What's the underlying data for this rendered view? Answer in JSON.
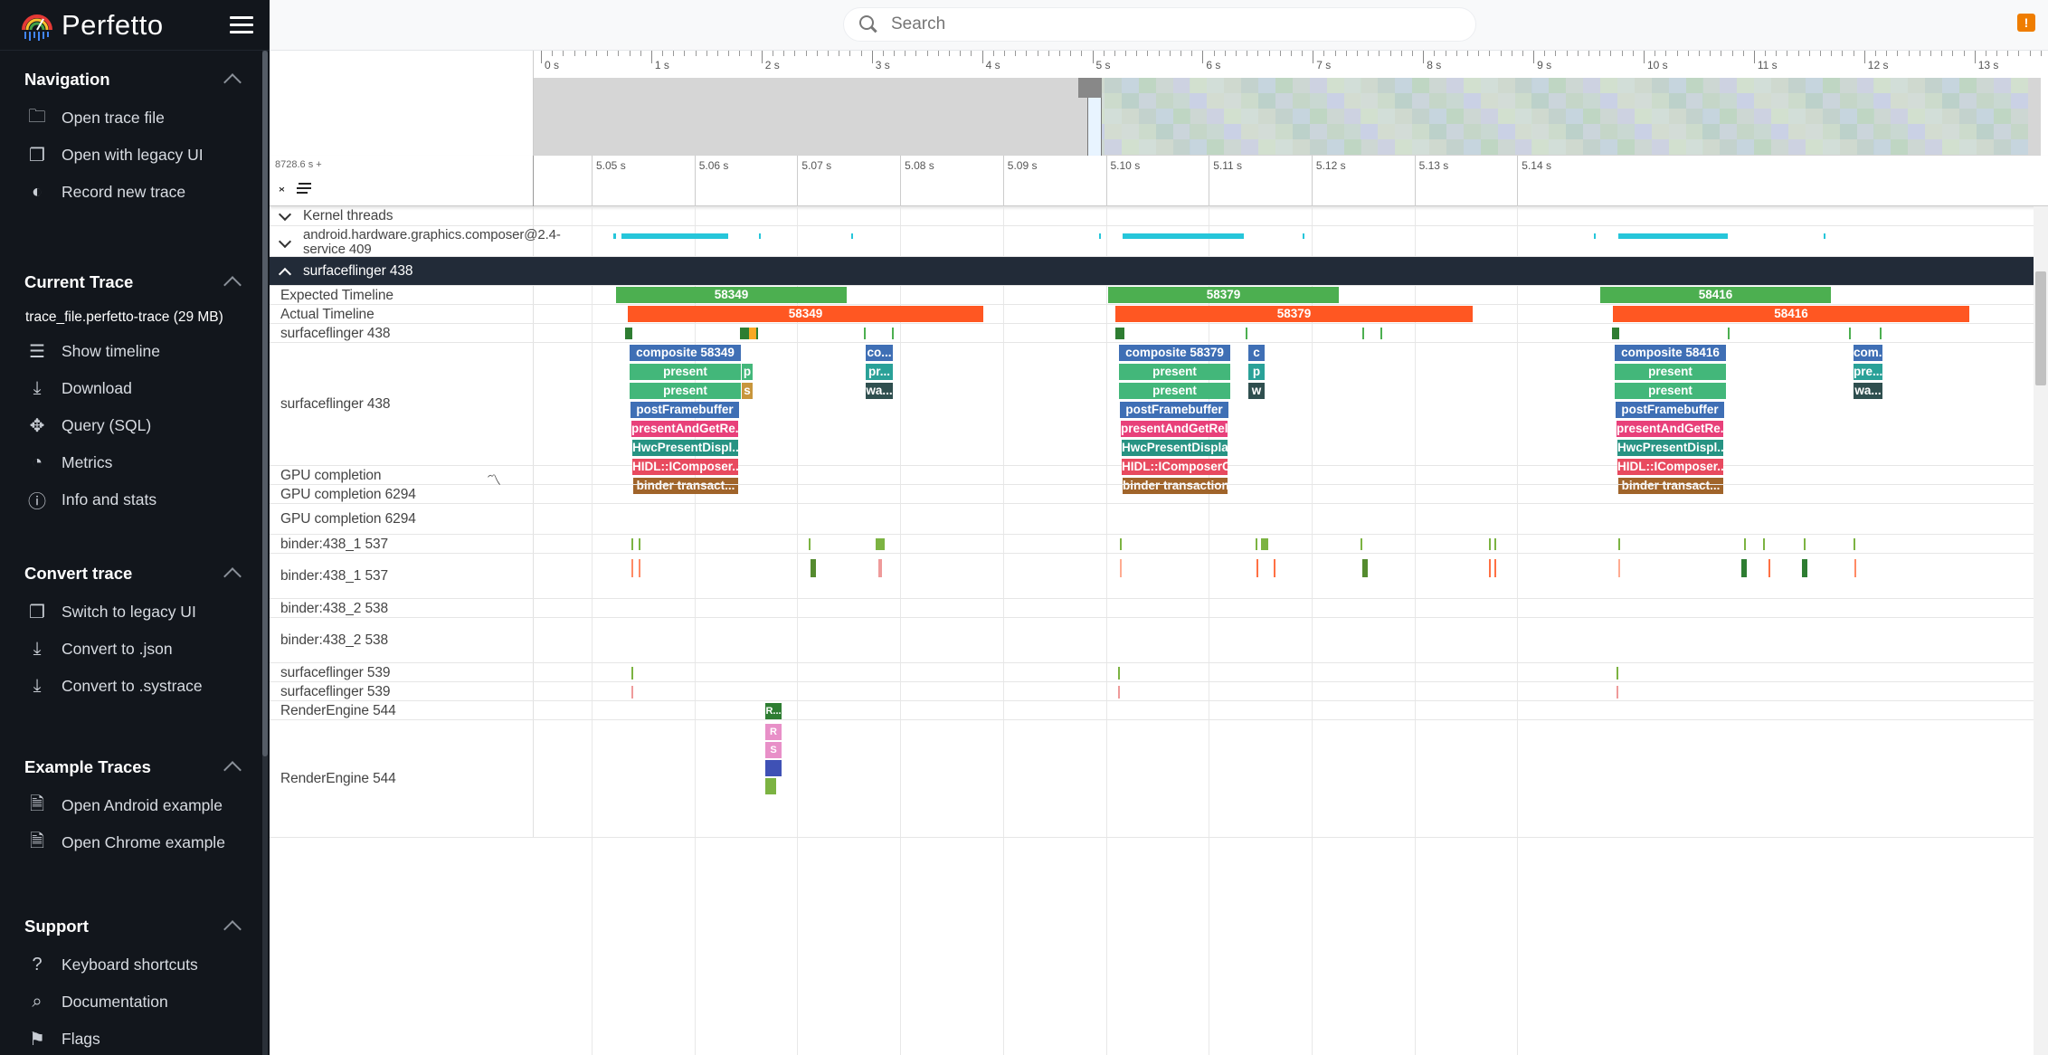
{
  "app": {
    "title": "Perfetto"
  },
  "sidebar": {
    "sections": [
      {
        "title": "Navigation",
        "items": [
          {
            "label": "Open trace file",
            "icon": "folder-icon"
          },
          {
            "label": "Open with legacy UI",
            "icon": "filter-none-icon"
          },
          {
            "label": "Record new trace",
            "icon": "record-toggle-icon"
          }
        ]
      },
      {
        "title": "Current Trace",
        "trace_name": "trace_file.perfetto-trace (29 MB)",
        "items": [
          {
            "label": "Show timeline",
            "icon": "timeline-icon"
          },
          {
            "label": "Download",
            "icon": "download-icon"
          },
          {
            "label": "Query (SQL)",
            "icon": "query-icon"
          },
          {
            "label": "Metrics",
            "icon": "speedometer-icon"
          },
          {
            "label": "Info and stats",
            "icon": "info-icon"
          }
        ]
      },
      {
        "title": "Convert trace",
        "items": [
          {
            "label": "Switch to legacy UI",
            "icon": "filter-none-icon"
          },
          {
            "label": "Convert to .json",
            "icon": "download-icon"
          },
          {
            "label": "Convert to .systrace",
            "icon": "download-icon"
          }
        ]
      },
      {
        "title": "Example Traces",
        "items": [
          {
            "label": "Open Android example",
            "icon": "description-icon"
          },
          {
            "label": "Open Chrome example",
            "icon": "description-icon"
          }
        ]
      },
      {
        "title": "Support",
        "items": [
          {
            "label": "Keyboard shortcuts",
            "icon": "help-icon"
          },
          {
            "label": "Documentation",
            "icon": "find-in-page-icon"
          },
          {
            "label": "Flags",
            "icon": "emoji-flags-icon"
          }
        ]
      }
    ]
  },
  "search": {
    "placeholder": "Search"
  },
  "warning": {
    "label": "!"
  },
  "overview": {
    "ticks": [
      "0 s",
      "1 s",
      "2 s",
      "3 s",
      "4 s",
      "5 s",
      "6 s",
      "7 s",
      "8 s",
      "9 s",
      "10 s",
      "11 s",
      "12 s",
      "13 s"
    ]
  },
  "timeline": {
    "offset_label": "8728.6 s +",
    "ticks": [
      "5.05 s",
      "5.06 s",
      "5.07 s",
      "5.08 s",
      "5.09 s",
      "5.10 s",
      "5.11 s",
      "5.12 s",
      "5.13 s",
      "5.14 s"
    ]
  },
  "tracks": {
    "kernel_threads": "Kernel threads",
    "composer_service": "android.hardware.graphics.composer@2.4-service 409",
    "sf_group": "surfaceflinger 438",
    "expected_timeline": "Expected Timeline",
    "actual_timeline": "Actual Timeline",
    "sf_438_a": "surfaceflinger 438",
    "sf_438_b": "surfaceflinger 438",
    "gpu_completion": "GPU completion",
    "gpu_completion_6294_a": "GPU completion 6294",
    "gpu_completion_6294_b": "GPU completion 6294",
    "binder_1_a": "binder:438_1 537",
    "binder_1_b": "binder:438_1 537",
    "binder_2_a": "binder:438_2 538",
    "binder_2_b": "binder:438_2 538",
    "sf_539_a": "surfaceflinger 539",
    "sf_539_b": "surfaceflinger 539",
    "re_544_a": "RenderEngine 544",
    "re_544_b": "RenderEngine 544"
  },
  "frames": {
    "expected": [
      "58349",
      "58379",
      "58416"
    ],
    "actual": [
      "58349",
      "58379",
      "58416"
    ]
  },
  "slices": {
    "f1": [
      "composite 58349",
      "present",
      "present",
      "postFramebuffer",
      "presentAndGetRe...",
      "HwcPresentDispl...",
      "HIDL::IComposer...",
      "binder transact..."
    ],
    "f2": [
      "composite 58379",
      "present",
      "present",
      "postFramebuffer",
      "presentAndGetRele...",
      "HwcPresentDisplay",
      "HIDL::IComposerCl...",
      "binder transaction"
    ],
    "f3": [
      "composite 58416",
      "present",
      "present",
      "postFramebuffer",
      "presentAndGetRe...",
      "HwcPresentDispl...",
      "HIDL::IComposer...",
      "binder transact..."
    ],
    "small1": [
      "p",
      "s"
    ],
    "small_co": [
      "co...",
      "pr...",
      "wa..."
    ],
    "small_c": [
      "c",
      "p",
      "w"
    ],
    "small_com": [
      "com...",
      "pre...",
      "wa..."
    ],
    "re": [
      "R...",
      "R",
      "S"
    ]
  },
  "colors": {
    "sidebar_bg": "#12161c",
    "group_header": "#222b38",
    "expected": "#4caf50",
    "actual": "#ff5722",
    "composite": "#3f6fb5",
    "present": "#43b77a",
    "postfb": "#3f6fb5",
    "presentget": "#e8407a",
    "hwc": "#279383",
    "hidl": "#e84a5f",
    "binder": "#a0642a",
    "cyan": "#26c6da"
  }
}
